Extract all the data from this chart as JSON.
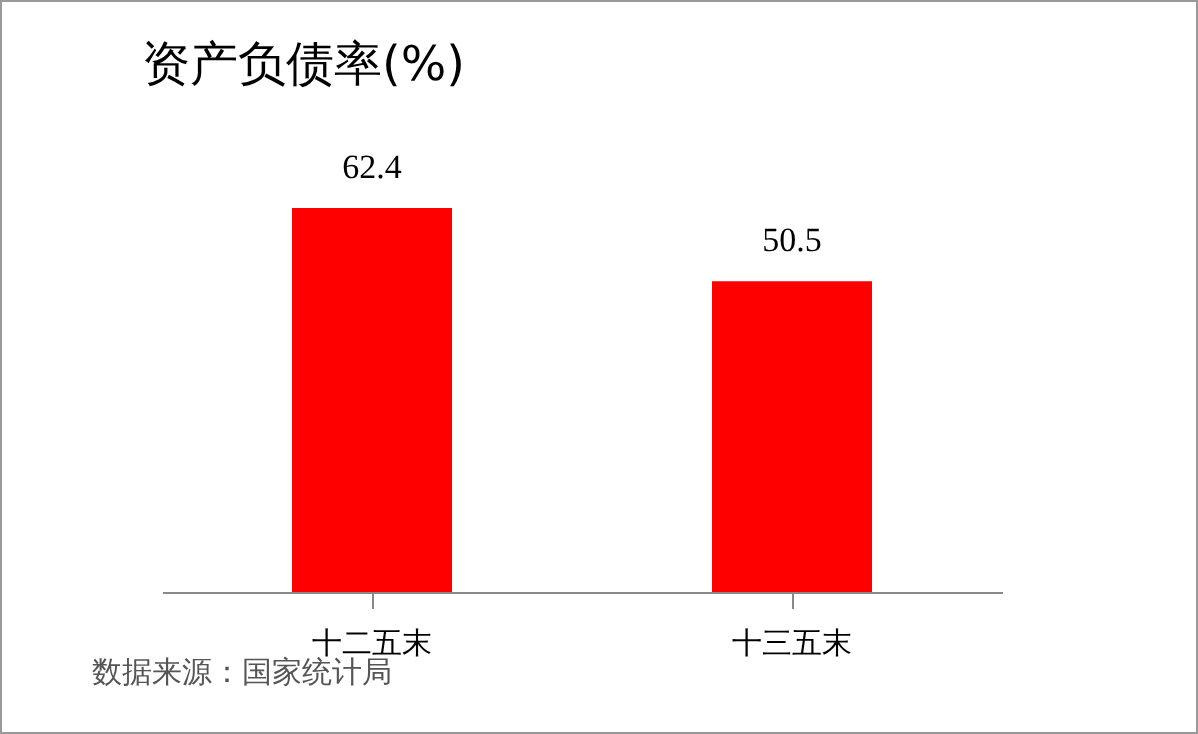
{
  "chart_data": {
    "type": "bar",
    "title": "资产负债率(%)",
    "categories": [
      "十二五末",
      "十三五末"
    ],
    "values": [
      62.4,
      50.5
    ],
    "color": "#ff0000",
    "data_labels": true,
    "annotations": [
      "数据来源：国家统计局"
    ]
  }
}
